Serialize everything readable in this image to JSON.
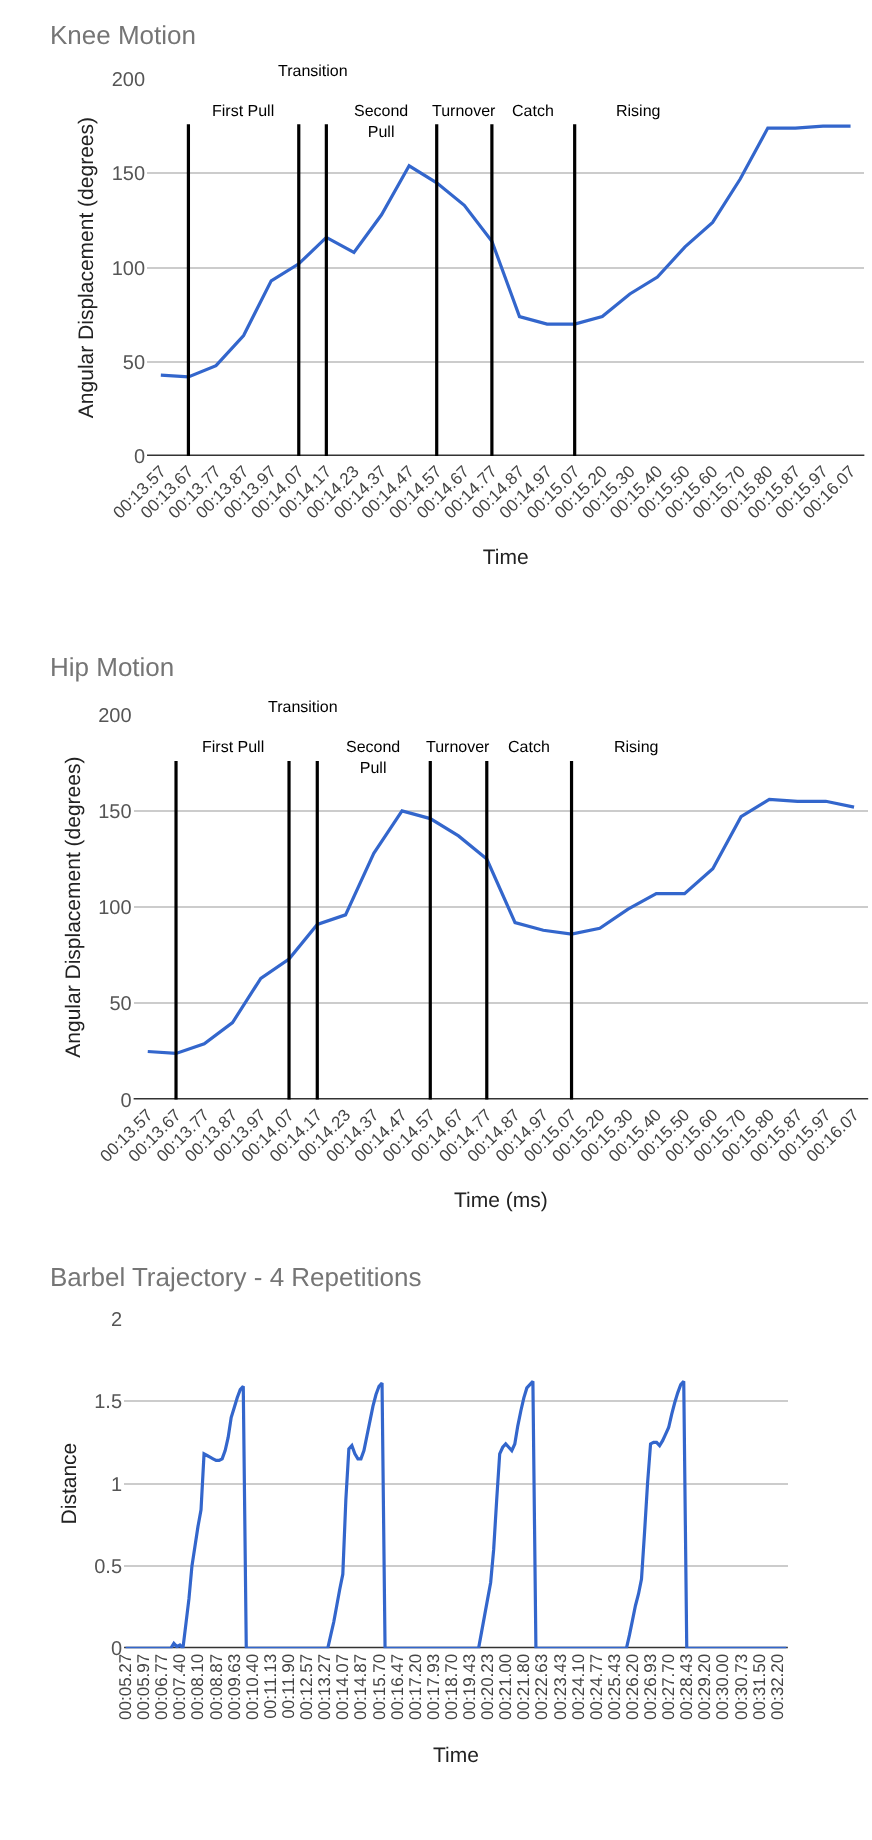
{
  "chart_data": [
    {
      "type": "line",
      "title": "Knee Motion",
      "xlabel": "Time",
      "ylabel": "Angular Displacement (degrees)",
      "categories": [
        "00:13.57",
        "00:13.67",
        "00:13.77",
        "00:13.87",
        "00:13.97",
        "00:14.07",
        "00:14.17",
        "00:14.23",
        "00:14.37",
        "00:14.47",
        "00:14.57",
        "00:14.67",
        "00:14.77",
        "00:14.87",
        "00:14.97",
        "00:15.07",
        "00:15.20",
        "00:15.30",
        "00:15.40",
        "00:15.50",
        "00:15.60",
        "00:15.70",
        "00:15.80",
        "00:15.87",
        "00:15.97",
        "00:16.07"
      ],
      "series": [
        {
          "color": "#3366cc",
          "values": [
            43,
            42,
            48,
            64,
            93,
            102,
            116,
            108,
            128,
            154,
            145,
            133,
            114,
            74,
            70,
            70,
            74,
            86,
            95,
            111,
            124,
            147,
            174,
            174,
            175,
            175
          ]
        }
      ],
      "ylim": [
        0,
        200
      ],
      "yticks": [
        0,
        50,
        100,
        150,
        200
      ],
      "grid": "y",
      "ref_lines": [
        {
          "axis": "x",
          "value": "00:13.67",
          "color": "#000000"
        },
        {
          "axis": "x",
          "value": "00:14.07",
          "color": "#000000"
        },
        {
          "axis": "x",
          "value": "00:14.17",
          "color": "#000000"
        },
        {
          "axis": "x",
          "value": "00:14.57",
          "color": "#000000"
        },
        {
          "axis": "x",
          "value": "00:14.77",
          "color": "#000000"
        },
        {
          "axis": "x",
          "value": "00:15.07",
          "color": "#000000"
        }
      ],
      "annotations": [
        "First Pull",
        "Transition",
        "Second\nPull",
        "Turnover",
        "Catch",
        "Rising"
      ]
    },
    {
      "type": "line",
      "title": "Hip Motion",
      "xlabel": "Time (ms)",
      "ylabel": "Angular Displacement (degrees)",
      "categories": [
        "00:13.57",
        "00:13.67",
        "00:13.77",
        "00:13.87",
        "00:13.97",
        "00:14.07",
        "00:14.17",
        "00:14.23",
        "00:14.37",
        "00:14.47",
        "00:14.57",
        "00:14.67",
        "00:14.77",
        "00:14.87",
        "00:14.97",
        "00:15.07",
        "00:15.20",
        "00:15.30",
        "00:15.40",
        "00:15.50",
        "00:15.60",
        "00:15.70",
        "00:15.80",
        "00:15.87",
        "00:15.97",
        "00:16.07"
      ],
      "series": [
        {
          "color": "#3366cc",
          "values": [
            25,
            24,
            29,
            40,
            63,
            73,
            91,
            96,
            128,
            150,
            146,
            137,
            125,
            92,
            88,
            86,
            89,
            99,
            107,
            107,
            120,
            147,
            156,
            155,
            155,
            152
          ]
        }
      ],
      "ylim": [
        0,
        200
      ],
      "yticks": [
        0,
        50,
        100,
        150,
        200
      ],
      "grid": "y",
      "ref_lines": [
        {
          "axis": "x",
          "value": "00:13.67",
          "color": "#000000"
        },
        {
          "axis": "x",
          "value": "00:14.07",
          "color": "#000000"
        },
        {
          "axis": "x",
          "value": "00:14.17",
          "color": "#000000"
        },
        {
          "axis": "x",
          "value": "00:14.57",
          "color": "#000000"
        },
        {
          "axis": "x",
          "value": "00:14.77",
          "color": "#000000"
        },
        {
          "axis": "x",
          "value": "00:15.07",
          "color": "#000000"
        }
      ],
      "annotations": [
        "First Pull",
        "Transition",
        "Second\nPull",
        "Turnover",
        "Catch",
        "Rising"
      ]
    },
    {
      "type": "line",
      "title": "Barbel Trajectory - 4 Repetitions",
      "xlabel": "Time",
      "ylabel": "Distance",
      "categories": [
        "00:05.27",
        null,
        null,
        null,
        null,
        null,
        "00:05.97",
        null,
        null,
        null,
        null,
        null,
        "00:06.77",
        null,
        null,
        null,
        null,
        null,
        "00:07.40",
        null,
        null,
        null,
        null,
        null,
        "00:08.10",
        null,
        null,
        null,
        null,
        null,
        "00:08.87",
        null,
        null,
        null,
        null,
        null,
        "00:09.63",
        null,
        null,
        null,
        null,
        null,
        "00:10.40",
        null,
        null,
        null,
        null,
        null,
        "00:11.13",
        null,
        null,
        null,
        null,
        null,
        "00:11.90",
        null,
        null,
        null,
        null,
        null,
        "00:12.57",
        null,
        null,
        null,
        null,
        null,
        "00:13.27",
        null,
        null,
        null,
        null,
        null,
        "00:14.07",
        null,
        null,
        null,
        null,
        null,
        "00:14.87",
        null,
        null,
        null,
        null,
        null,
        "00:15.70",
        null,
        null,
        null,
        null,
        null,
        "00:16.47",
        null,
        null,
        null,
        null,
        null,
        "00:17.20",
        null,
        null,
        null,
        null,
        null,
        "00:17.93",
        null,
        null,
        null,
        null,
        null,
        "00:18.70",
        null,
        null,
        null,
        null,
        null,
        "00:19.43",
        null,
        null,
        null,
        null,
        null,
        "00:20.23",
        null,
        null,
        null,
        null,
        null,
        "00:21.00",
        null,
        null,
        null,
        null,
        null,
        "00:21.80",
        null,
        null,
        null,
        null,
        null,
        "00:22.63",
        null,
        null,
        null,
        null,
        null,
        "00:23.43",
        null,
        null,
        null,
        null,
        null,
        "00:24.10",
        null,
        null,
        null,
        null,
        null,
        "00:24.77",
        null,
        null,
        null,
        null,
        null,
        "00:25.43",
        null,
        null,
        null,
        null,
        null,
        "00:26.20",
        null,
        null,
        null,
        null,
        null,
        "00:26.93",
        null,
        null,
        null,
        null,
        null,
        "00:27.70",
        null,
        null,
        null,
        null,
        null,
        "00:28.43",
        null,
        null,
        null,
        null,
        null,
        "00:29.20",
        null,
        null,
        null,
        null,
        null,
        "00:30.00",
        null,
        null,
        null,
        null,
        null,
        "00:30.73",
        null,
        null,
        null,
        null,
        null,
        "00:31.50",
        null,
        null,
        null,
        null,
        null,
        "00:32.20",
        null,
        null,
        null
      ],
      "series": [
        {
          "color": "#3366cc",
          "values": [
            0,
            0,
            0,
            0,
            0,
            0,
            0,
            0,
            0,
            0,
            0,
            0,
            0,
            0,
            0,
            0,
            0.03,
            0.01,
            0.02,
            0,
            0.15,
            0.3,
            0.5,
            0.62,
            0.74,
            0.84,
            1.18,
            1.17,
            1.16,
            1.15,
            1.14,
            1.14,
            1.15,
            1.2,
            1.28,
            1.4,
            1.46,
            1.52,
            1.57,
            1.59,
            0,
            0,
            0,
            0,
            0,
            0,
            0,
            0,
            0,
            0,
            0,
            0,
            0,
            0,
            0,
            0,
            0,
            0,
            0,
            0,
            0,
            0,
            0,
            0,
            0,
            0,
            0,
            0,
            0.08,
            0.16,
            0.26,
            0.36,
            0.45,
            0.9,
            1.21,
            1.23,
            1.18,
            1.15,
            1.15,
            1.2,
            1.29,
            1.38,
            1.47,
            1.54,
            1.59,
            1.61,
            0,
            0,
            0,
            0,
            0,
            0,
            0,
            0,
            0,
            0,
            0,
            0,
            0,
            0,
            0,
            0,
            0,
            0,
            0,
            0,
            0,
            0,
            0,
            0,
            0,
            0,
            0,
            0,
            0,
            0,
            0,
            0,
            0.1,
            0.2,
            0.3,
            0.4,
            0.6,
            0.9,
            1.18,
            1.22,
            1.24,
            1.22,
            1.2,
            1.24,
            1.35,
            1.44,
            1.52,
            1.58,
            1.6,
            1.62,
            0,
            0,
            0,
            0,
            0,
            0,
            0,
            0,
            0,
            0,
            0,
            0,
            0,
            0,
            0,
            0,
            0,
            0,
            0,
            0,
            0,
            0,
            0,
            0,
            0,
            0,
            0,
            0,
            0,
            0,
            0,
            0.08,
            0.17,
            0.26,
            0.33,
            0.42,
            0.7,
            1.0,
            1.24,
            1.25,
            1.25,
            1.23,
            1.26,
            1.3,
            1.34,
            1.42,
            1.49,
            1.55,
            1.6,
            1.62,
            0,
            0,
            0,
            0,
            0,
            0,
            0,
            0,
            0,
            0,
            0,
            0,
            0,
            0,
            0,
            0,
            0,
            0,
            0,
            0,
            0,
            0,
            0,
            0,
            0,
            0,
            0,
            0,
            0,
            0,
            0,
            0,
            0,
            0
          ]
        }
      ],
      "ylim": [
        0,
        2
      ],
      "yticks": [
        0,
        0.5,
        1,
        1.5,
        2
      ],
      "grid": "y"
    }
  ]
}
